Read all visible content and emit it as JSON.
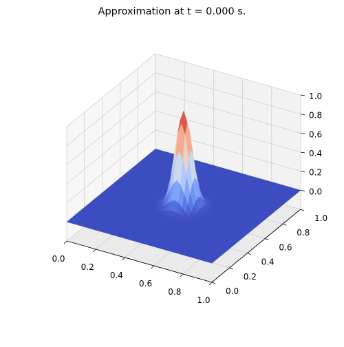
{
  "chart_data": {
    "type": "surface",
    "title": "Approximation at t = 0.000 s.",
    "xlabel": "",
    "ylabel": "",
    "zlabel": "",
    "xlim": [
      0.0,
      1.0
    ],
    "ylim": [
      0.0,
      1.0
    ],
    "zlim": [
      -0.2,
      1.0
    ],
    "x_ticks": [
      "0.0",
      "0.2",
      "0.4",
      "0.6",
      "0.8",
      "1.0"
    ],
    "y_ticks": [
      "0.0",
      "0.2",
      "0.4",
      "0.6",
      "0.8",
      "1.0"
    ],
    "z_ticks": [
      "0.0",
      "0.2",
      "0.4",
      "0.6",
      "0.8",
      "1.0"
    ],
    "grid": true,
    "colormap": "coolwarm",
    "surface": {
      "function": "gaussian peak",
      "center": [
        0.5,
        0.5
      ],
      "peak_value": 1.0,
      "base_value": 0.0,
      "width_sigma": 0.05
    }
  }
}
